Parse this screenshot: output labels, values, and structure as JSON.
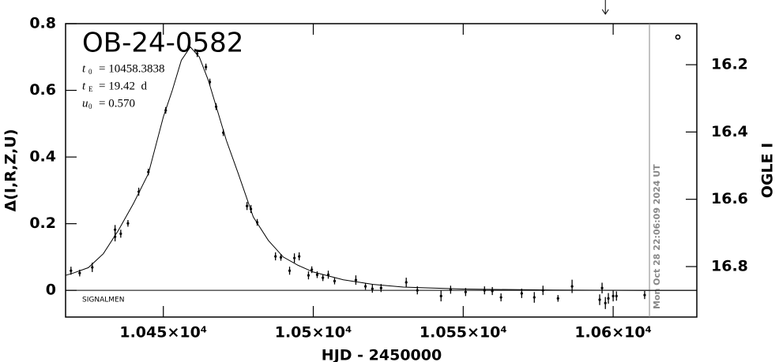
{
  "chart_data": {
    "type": "scatter",
    "title": "OB-24-0582",
    "params": [
      {
        "name": "t",
        "sub": "0",
        "value": "= 10458.3838"
      },
      {
        "name": "t",
        "sub": "E",
        "value": "= 19.42  d"
      },
      {
        "name": "u",
        "sub": "0",
        "value": "= 0.570"
      }
    ],
    "note": "SIGNALMEN",
    "timestamp": "Mon Oct 28 22:06:09 2024 UT",
    "xlabel": "HJD - 2450000",
    "ylabel": "Δ(I,R,Z,U)",
    "y2label": "OGLE I",
    "xlim": [
      10417.4,
      10627.9
    ],
    "ylim": [
      -0.08,
      0.8
    ],
    "y2lim": [
      16.95,
      16.078
    ],
    "xticks": [
      {
        "value": 10450,
        "label": "1.045×10⁴"
      },
      {
        "value": 10500,
        "label": "1.05×10⁴"
      },
      {
        "value": 10550,
        "label": "1.055×10⁴"
      },
      {
        "value": 10600,
        "label": "1.06×10⁴"
      }
    ],
    "yticks": [
      0,
      0.2,
      0.4,
      0.6,
      0.8
    ],
    "y2ticks": [
      16.2,
      16.4,
      16.6,
      16.8
    ],
    "marker_x": 10612.1,
    "arrow_x": 10597.4,
    "series": [
      {
        "color": "#000000",
        "x": [
          10419.2,
          10422.1,
          10426.3,
          10433.9,
          10433.9,
          10435.8,
          10438.2,
          10441.8,
          10445.0,
          10450.8,
          10461.3,
          10464.2,
          10465.5,
          10467.6,
          10470.0,
          10477.9,
          10479.2,
          10481.3,
          10487.4,
          10489.2,
          10492.1,
          10493.7,
          10495.3,
          10498.4,
          10499.5,
          10501.3,
          10503.2,
          10505.0,
          10507.1,
          10514.2,
          10517.4,
          10519.7,
          10522.6,
          10531.0,
          10534.7,
          10542.6,
          10545.8,
          10550.8,
          10557.1,
          10559.7,
          10562.6,
          10569.5,
          10573.7,
          10576.6,
          10581.6,
          10586.3,
          10595.5,
          10596.3,
          10597.4,
          10598.4,
          10600.0,
          10601.1,
          10610.5
        ],
        "values": [
          0.059,
          0.052,
          0.069,
          0.182,
          0.161,
          0.17,
          0.201,
          0.296,
          0.355,
          0.54,
          0.71,
          0.67,
          0.625,
          0.551,
          0.473,
          0.253,
          0.244,
          0.204,
          0.102,
          0.099,
          0.059,
          0.097,
          0.102,
          0.045,
          0.062,
          0.047,
          0.038,
          0.047,
          0.028,
          0.031,
          0.012,
          0.005,
          0.007,
          0.024,
          0,
          -0.017,
          0.002,
          -0.005,
          0,
          -0.002,
          -0.021,
          -0.009,
          -0.021,
          0,
          -0.024,
          0.012,
          -0.028,
          0.007,
          -0.038,
          -0.024,
          -0.017,
          -0.017,
          -0.014
        ],
        "errors": [
          0.012,
          0.01,
          0.014,
          0.014,
          0.014,
          0.012,
          0.01,
          0.012,
          0.01,
          0.01,
          0.01,
          0.01,
          0.01,
          0.01,
          0.01,
          0.012,
          0.012,
          0.01,
          0.012,
          0.01,
          0.012,
          0.014,
          0.012,
          0.012,
          0.01,
          0.01,
          0.01,
          0.012,
          0.01,
          0.014,
          0.01,
          0.012,
          0.012,
          0.014,
          0.012,
          0.016,
          0.012,
          0.012,
          0.012,
          0.012,
          0.012,
          0.014,
          0.016,
          0.014,
          0.01,
          0.02,
          0.016,
          0.016,
          0.018,
          0.016,
          0.016,
          0.014,
          0.012
        ]
      }
    ],
    "model": {
      "x": [
        10417.4,
        10420,
        10425,
        10430,
        10435,
        10440,
        10445,
        10450,
        10453,
        10456,
        10459,
        10462,
        10465,
        10468,
        10471,
        10475,
        10480,
        10485,
        10490,
        10495,
        10500,
        10510,
        10520,
        10530,
        10550,
        10580,
        10610,
        10627.9
      ],
      "values": [
        0.045,
        0.052,
        0.068,
        0.11,
        0.18,
        0.26,
        0.35,
        0.52,
        0.6,
        0.69,
        0.73,
        0.7,
        0.63,
        0.54,
        0.45,
        0.35,
        0.22,
        0.15,
        0.1,
        0.075,
        0.055,
        0.032,
        0.018,
        0.01,
        0.004,
        0.001,
        0,
        0
      ]
    }
  }
}
